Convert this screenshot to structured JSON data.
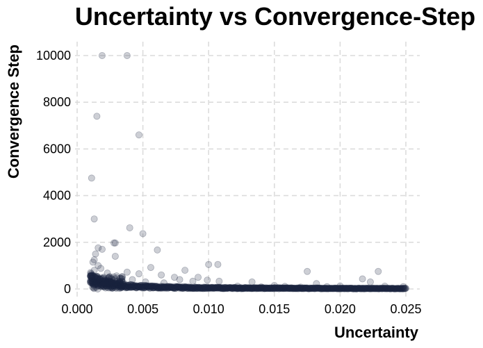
{
  "chart_data": {
    "type": "scatter",
    "title": "Uncertainty vs Convergence-Step",
    "xlabel": "Uncertainty",
    "ylabel": "Convergence Step",
    "xlim": [
      0.0,
      0.025
    ],
    "ylim": [
      -300,
      10500
    ],
    "xticks": [
      0.0,
      0.005,
      0.01,
      0.015,
      0.02,
      0.025
    ],
    "xtick_labels": [
      "0.000",
      "0.005",
      "0.010",
      "0.015",
      "0.020",
      "0.025"
    ],
    "yticks": [
      0,
      2000,
      4000,
      6000,
      8000,
      10000
    ],
    "ytick_labels": [
      "0",
      "2000",
      "4000",
      "6000",
      "8000",
      "10000"
    ],
    "grid": true,
    "marker_color": "#1b2340",
    "marker_opacity": 0.22,
    "points": [
      [
        0.0019,
        10000
      ],
      [
        0.0038,
        10000
      ],
      [
        0.0015,
        7400
      ],
      [
        0.0047,
        6600
      ],
      [
        0.0011,
        4750
      ],
      [
        0.0013,
        3000
      ],
      [
        0.004,
        2620
      ],
      [
        0.005,
        2370
      ],
      [
        0.0028,
        1970
      ],
      [
        0.0029,
        1970
      ],
      [
        0.0016,
        1760
      ],
      [
        0.0019,
        1700
      ],
      [
        0.0061,
        1670
      ],
      [
        0.0014,
        1500
      ],
      [
        0.0029,
        1400
      ],
      [
        0.0013,
        1250
      ],
      [
        0.0012,
        1150
      ],
      [
        0.01,
        1050
      ],
      [
        0.0107,
        1050
      ],
      [
        0.0016,
        1000
      ],
      [
        0.0056,
        920
      ],
      [
        0.0018,
        880
      ],
      [
        0.0082,
        800
      ],
      [
        0.0013,
        800
      ],
      [
        0.0175,
        750
      ],
      [
        0.0229,
        750
      ],
      [
        0.0038,
        720
      ],
      [
        0.0023,
        680
      ],
      [
        0.0047,
        650
      ],
      [
        0.0064,
        600
      ],
      [
        0.003,
        560
      ],
      [
        0.0074,
        500
      ],
      [
        0.0092,
        500
      ],
      [
        0.002,
        450
      ],
      [
        0.0217,
        430
      ],
      [
        0.0078,
        400
      ],
      [
        0.0099,
        380
      ],
      [
        0.0042,
        400
      ],
      [
        0.0088,
        330
      ],
      [
        0.0108,
        330
      ],
      [
        0.0133,
        300
      ],
      [
        0.0223,
        300
      ],
      [
        0.0052,
        300
      ],
      [
        0.0026,
        300
      ],
      [
        0.0035,
        280
      ],
      [
        0.0066,
        260
      ],
      [
        0.0182,
        230
      ],
      [
        0.015,
        150
      ],
      [
        0.02,
        130
      ],
      [
        0.0234,
        120
      ],
      [
        0.0248,
        100
      ],
      [
        0.0122,
        120
      ],
      [
        0.0158,
        110
      ],
      [
        0.019,
        100
      ],
      [
        0.014,
        90
      ],
      [
        0.017,
        80
      ]
    ],
    "dense_band": {
      "description_free": true,
      "x_from": 0.001,
      "x_to": 0.025,
      "y_peak": 700,
      "y_floor": 0
    }
  }
}
